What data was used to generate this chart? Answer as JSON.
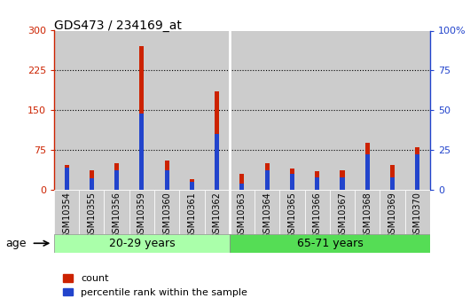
{
  "title": "GDS473 / 234169_at",
  "samples": [
    "GSM10354",
    "GSM10355",
    "GSM10356",
    "GSM10359",
    "GSM10360",
    "GSM10361",
    "GSM10362",
    "GSM10363",
    "GSM10364",
    "GSM10365",
    "GSM10366",
    "GSM10367",
    "GSM10368",
    "GSM10369",
    "GSM10370"
  ],
  "count_values": [
    47,
    37,
    50,
    270,
    55,
    20,
    185,
    30,
    50,
    40,
    35,
    37,
    88,
    47,
    80
  ],
  "percentile_values": [
    14,
    7,
    12,
    48,
    12,
    5,
    35,
    4,
    12,
    10,
    8,
    8,
    22,
    8,
    22
  ],
  "group1_label": "20-29 years",
  "group2_label": "65-71 years",
  "group1_count": 7,
  "group2_count": 8,
  "ylim_left": [
    0,
    300
  ],
  "ylim_right": [
    0,
    100
  ],
  "yticks_left": [
    0,
    75,
    150,
    225,
    300
  ],
  "yticks_right": [
    0,
    25,
    50,
    75,
    100
  ],
  "ylabel_right_ticks": [
    "0",
    "25",
    "50",
    "75",
    "100%"
  ],
  "bar_color_count": "#cc2200",
  "bar_color_percentile": "#2244cc",
  "bar_width": 0.18,
  "grid_color": "#000000",
  "plot_bg_color": "#ffffff",
  "col_bg_color": "#cccccc",
  "group_bg_color1": "#aaffaa",
  "group_bg_color2": "#55dd55",
  "legend_count": "count",
  "legend_percentile": "percentile rank within the sample",
  "age_label": "age"
}
